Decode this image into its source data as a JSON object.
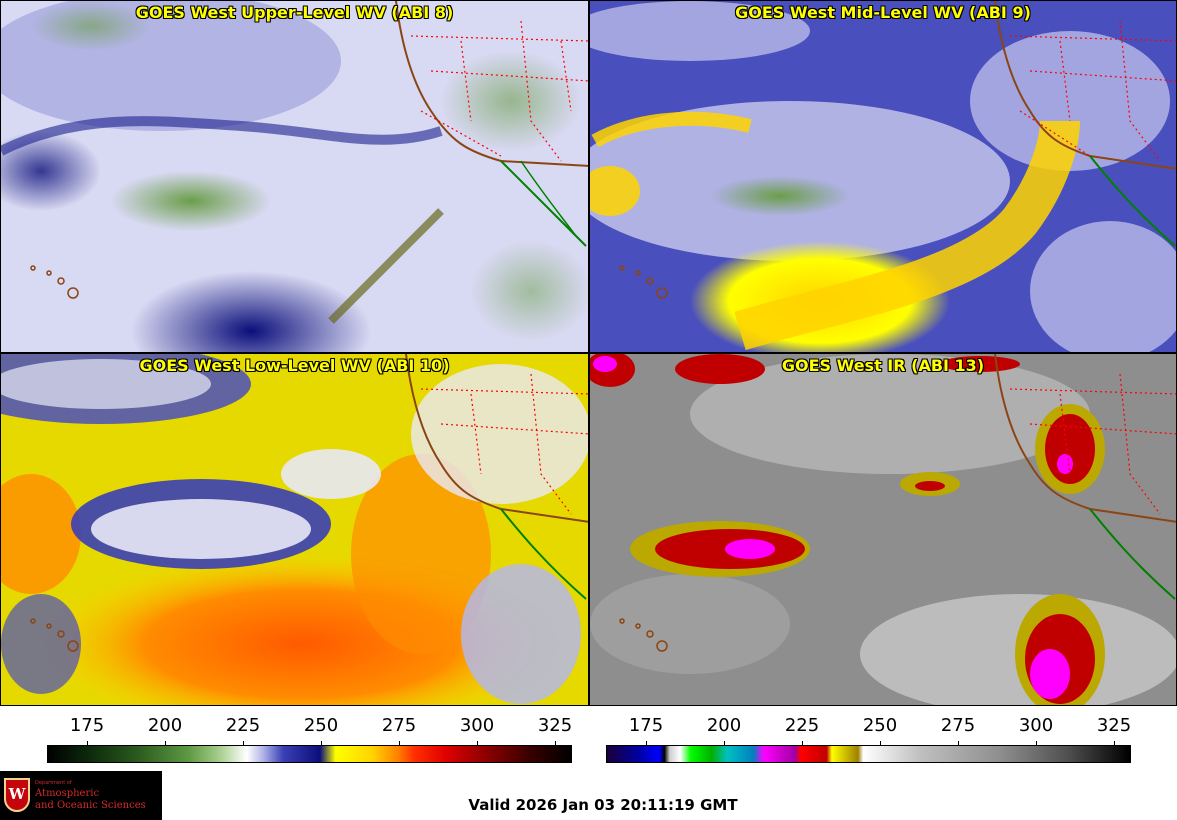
{
  "panels": [
    {
      "title": "GOES West Upper-Level WV (ABI 8)"
    },
    {
      "title": "GOES West Mid-Level WV (ABI 9)"
    },
    {
      "title": "GOES West Low-Level WV (ABI 10)"
    },
    {
      "title": "GOES West IR (ABI 13)"
    }
  ],
  "colorbars": {
    "left": {
      "ticks": [
        "175",
        "200",
        "225",
        "250",
        "275",
        "300",
        "325"
      ],
      "scheme": "water-vapor"
    },
    "right": {
      "ticks": [
        "175",
        "200",
        "225",
        "250",
        "275",
        "300",
        "325"
      ],
      "scheme": "infrared"
    }
  },
  "logo": {
    "dept_line": "Department of",
    "line1": "Atmospheric",
    "line2": "and Oceanic Sciences",
    "crest_letter": "W"
  },
  "footer": {
    "valid_text": "Valid 2026 Jan 03 20:11:19 GMT"
  },
  "colors": {
    "title_text": "#ffff00",
    "coast": "#8b4513",
    "state_borders": "#ff0000",
    "mexico_coast": "#008000"
  }
}
